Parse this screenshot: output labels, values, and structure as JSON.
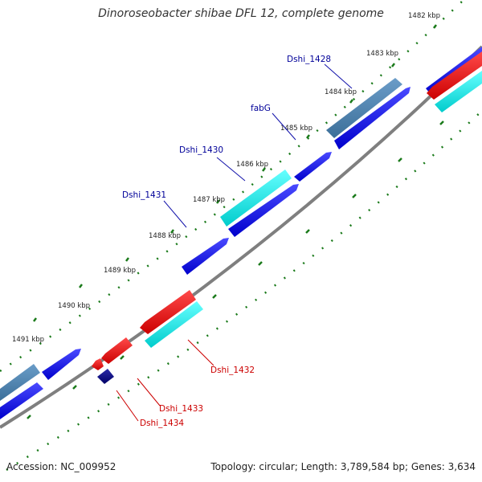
{
  "title": "Dinoroseobacter shibae DFL 12, complete genome",
  "footer": {
    "accession": "Accession: NC_009952",
    "topology": "Topology: circular; Length: 3,789,584 bp; Genes: 3,634"
  },
  "ruler_labels": [
    "1482 kbp",
    "1483 kbp",
    "1484 kbp",
    "1485 kbp",
    "1486 kbp",
    "1487 kbp",
    "1488 kbp",
    "1489 kbp",
    "1490 kbp",
    "1491 kbp"
  ],
  "gene_labels": [
    {
      "name": "Dshi_1428",
      "strand": "+"
    },
    {
      "name": "fabG",
      "strand": "+"
    },
    {
      "name": "Dshi_1430",
      "strand": "+"
    },
    {
      "name": "Dshi_1431",
      "strand": "+"
    },
    {
      "name": "Dshi_1432",
      "strand": "-"
    },
    {
      "name": "Dshi_1433",
      "strand": "-"
    },
    {
      "name": "Dshi_1434",
      "strand": "-"
    }
  ],
  "colors": {
    "forward_cds": "#0000dd",
    "reverse_cds": "#ee0000",
    "forward_feature": "#00dddd",
    "steelblue_feature": "#4682b4",
    "navy_feature": "#000080",
    "backbone": "#808080",
    "tick": "#008000",
    "forward_label": "#000099",
    "reverse_label": "#cc0000"
  }
}
